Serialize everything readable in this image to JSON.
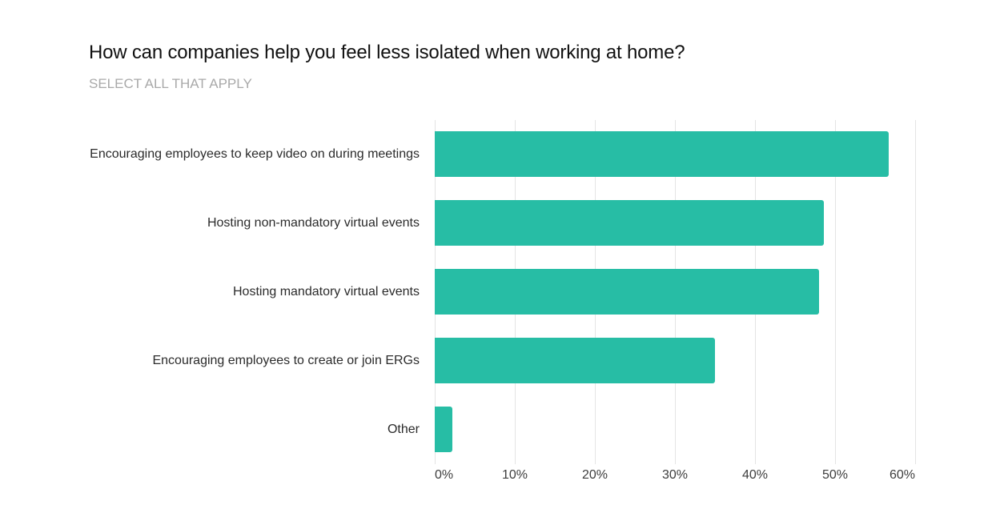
{
  "chart_data": {
    "type": "bar",
    "orientation": "horizontal",
    "title": "How can companies help you feel less isolated when working at home?",
    "subtitle": "SELECT ALL THAT APPLY",
    "xlabel": "",
    "ylabel": "",
    "categories": [
      "Encouraging employees to keep video on during meetings",
      "Hosting non-mandatory virtual events",
      "Hosting mandatory virtual events",
      "Encouraging employees to create or join ERGs",
      "Other"
    ],
    "values": [
      56.7,
      48.6,
      48.0,
      35.0,
      2.2
    ],
    "value_unit": "%",
    "xlim": [
      0,
      60
    ],
    "x_ticks": [
      0,
      10,
      20,
      30,
      40,
      50,
      60
    ],
    "x_tick_labels": [
      "0%",
      "10%",
      "20%",
      "30%",
      "40%",
      "50%",
      "60%"
    ],
    "grid": "vertical",
    "legend": "none",
    "bar_color": "#27BDA5"
  },
  "header": {
    "title": "How can companies help you feel less isolated when working at home?",
    "subtitle": "SELECT ALL THAT APPLY"
  },
  "colors": {
    "bar": "#27BDA5",
    "grid": "#e4e4e4",
    "title": "#111111",
    "subtitle": "#a9a9a9",
    "label": "#2b2b2b"
  }
}
